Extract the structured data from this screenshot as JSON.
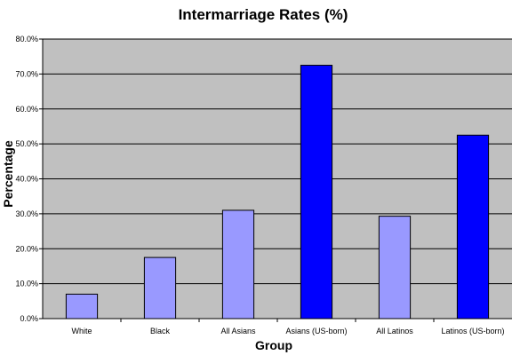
{
  "chart_data": {
    "type": "bar",
    "title": "Intermarriage Rates (%)",
    "xlabel": "Group",
    "ylabel": "Percentage",
    "categories": [
      "White",
      "Black",
      "All Asians",
      "Asians (US-born)",
      "All Latinos",
      "Latinos (US-born)"
    ],
    "values": [
      7.0,
      17.5,
      31.0,
      72.5,
      29.3,
      52.5
    ],
    "ylim": [
      0,
      80
    ],
    "y_ticks": [
      "0.0%",
      "10.0%",
      "20.0%",
      "30.0%",
      "40.0%",
      "50.0%",
      "60.0%",
      "70.0%",
      "80.0%"
    ],
    "grid": true,
    "legend": "none",
    "colors": {
      "plot_background": "#c0c0c0",
      "gridline": "#000000",
      "bar_light": "#9999ff",
      "bar_dark": "#0000ff",
      "bar_outline": "#000000"
    },
    "bar_colors": [
      "#9999ff",
      "#9999ff",
      "#9999ff",
      "#0000ff",
      "#9999ff",
      "#0000ff"
    ]
  }
}
